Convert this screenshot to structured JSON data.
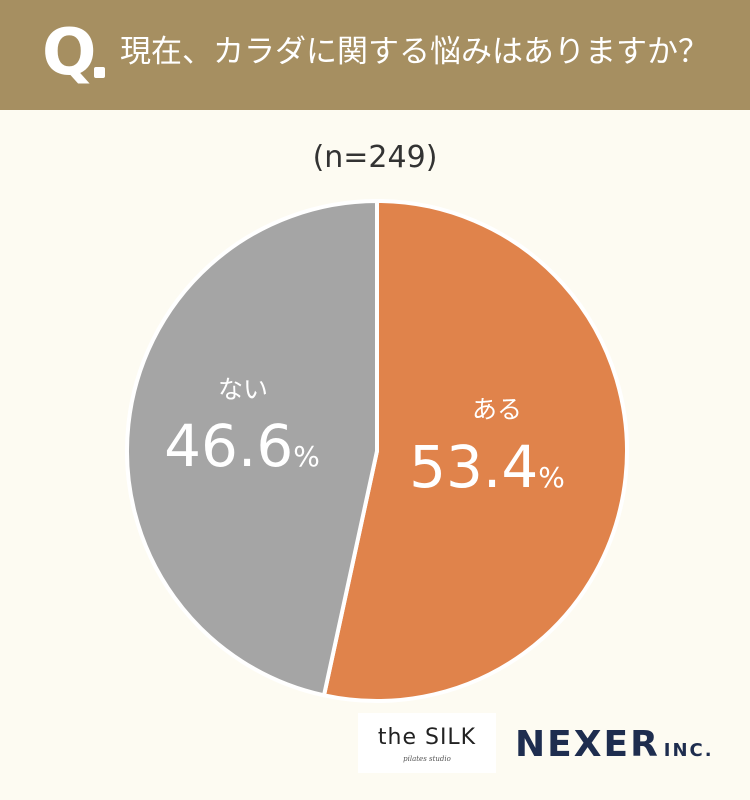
{
  "header": {
    "q_letter": "Q",
    "question": "現在、カラダに関する悩みはありますか？"
  },
  "sample_size": "(n=249)",
  "chart_data": {
    "type": "pie",
    "title": "現在、カラダに関する悩みはありますか？",
    "slices": [
      {
        "label": "ある",
        "value": 53.4,
        "value_text": "53.4",
        "unit": "%",
        "color": "#e0834b"
      },
      {
        "label": "ない",
        "value": 46.6,
        "value_text": "46.6",
        "unit": "%",
        "color": "#a5a5a5"
      }
    ],
    "start": "12 o'clock, clockwise"
  },
  "logos": {
    "silk": "the SILK",
    "silk_sub": "pilates studio",
    "nexer": "NEXER",
    "nexer_suffix": "INC."
  },
  "colors": {
    "header_bg": "#a68f61",
    "page_bg": "#fdfbf2",
    "label_text": "#ffffff",
    "nexer_navy": "#1e2d4f"
  }
}
